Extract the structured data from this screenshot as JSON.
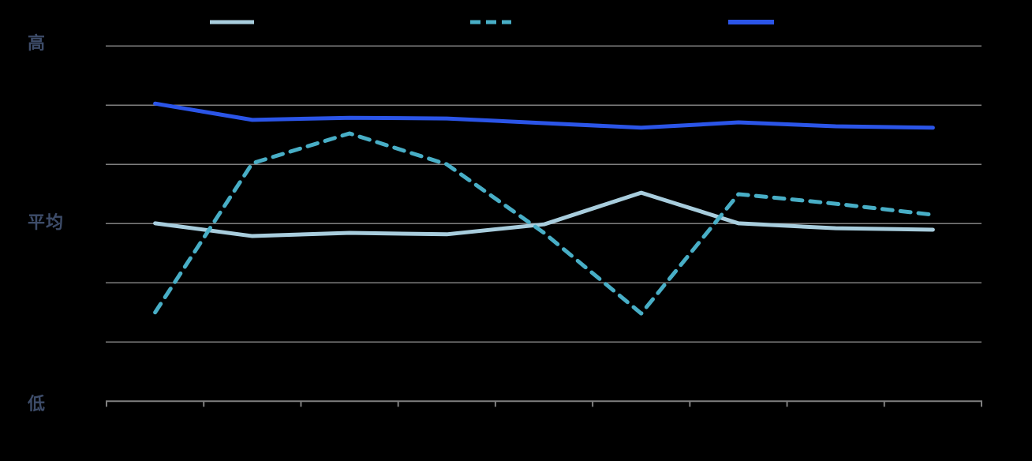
{
  "colors": {
    "background": "#000000",
    "grid": "#7f7f7f",
    "axis_label": "#3d4c69",
    "series_light_blue": "#a8cddd",
    "series_teal": "#48aec6",
    "series_blue": "#2b55e8"
  },
  "legend": {
    "items": [
      {
        "name": "light-blue-solid",
        "label": "",
        "color": "#a8cddd",
        "style": "solid"
      },
      {
        "name": "teal-dashed",
        "label": "",
        "color": "#48aec6",
        "style": "dashed"
      },
      {
        "name": "blue-solid",
        "label": "",
        "color": "#2b55e8",
        "style": "solid"
      }
    ]
  },
  "chart_data": {
    "type": "line",
    "title": "",
    "xlabel": "",
    "ylabel": "",
    "x": [
      1,
      2,
      3,
      4,
      5,
      6,
      7,
      8,
      9
    ],
    "x_tick_count": 10,
    "x_tick_labels_visible": false,
    "y_axis": {
      "high_label": "高",
      "average_label": "平均",
      "low_label": "低",
      "ylim": [
        0,
        100
      ],
      "gridline_intervals": 6
    },
    "grid": true,
    "legend_position": "top",
    "series": [
      {
        "name": "light-blue-solid",
        "color": "#a8cddd",
        "style": "solid",
        "values": [
          50.1,
          46.5,
          47.4,
          47.0,
          49.8,
          58.7,
          50.1,
          48.7,
          48.3
        ]
      },
      {
        "name": "teal-dashed",
        "color": "#48aec6",
        "style": "dashed",
        "values": [
          25.0,
          67.0,
          75.4,
          66.7,
          47.4,
          24.7,
          58.3,
          55.6,
          52.5
        ]
      },
      {
        "name": "blue-solid",
        "color": "#2b55e8",
        "style": "solid",
        "values": [
          83.8,
          79.2,
          79.8,
          79.6,
          78.3,
          77.0,
          78.5,
          77.4,
          77.0
        ]
      }
    ]
  }
}
